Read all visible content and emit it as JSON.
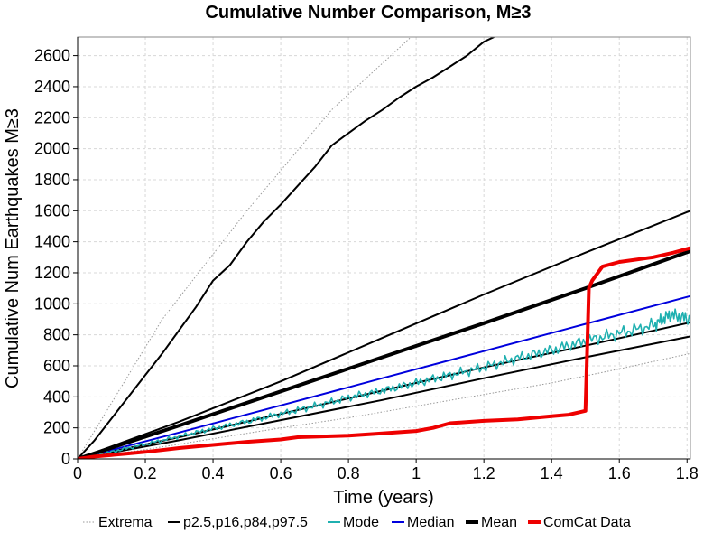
{
  "chart_data": {
    "type": "line",
    "title": "Cumulative Number Comparison, M≥3",
    "xlabel": "Time (years)",
    "ylabel": "Cumulative Num Earthquakes M≥3",
    "xlim": [
      0,
      1.81
    ],
    "ylim": [
      0,
      2720
    ],
    "xticks": [
      0,
      0.2,
      0.4,
      0.6,
      0.8,
      1,
      1.2,
      1.4,
      1.6,
      1.8
    ],
    "xtick_labels": [
      "0",
      "0.2",
      "0.4",
      "0.6",
      "0.8",
      "1",
      "1.2",
      "1.4",
      "1.6",
      "1.8"
    ],
    "yticks": [
      0,
      200,
      400,
      600,
      800,
      1000,
      1200,
      1400,
      1600,
      1800,
      2000,
      2200,
      2400,
      2600
    ],
    "ytick_labels": [
      "0",
      "200",
      "400",
      "600",
      "800",
      "1000",
      "1200",
      "1400",
      "1600",
      "1800",
      "2000",
      "2200",
      "2400",
      "2600"
    ],
    "grid": true,
    "legend_position": "bottom",
    "legend": [
      {
        "label": "Extrema",
        "color": "#999999",
        "style": "dotted"
      },
      {
        "label": "p2.5,p16,p84,p97.5",
        "color": "#000000",
        "style": "solid"
      },
      {
        "label": "Mode",
        "color": "#1fb0b0",
        "style": "solid"
      },
      {
        "label": "Median",
        "color": "#0000dd",
        "style": "solid"
      },
      {
        "label": "Mean",
        "color": "#000000",
        "style": "thick"
      },
      {
        "label": "ComCat Data",
        "color": "#ee0000",
        "style": "thick"
      }
    ],
    "series": [
      {
        "name": "Extrema",
        "color": "#999999",
        "style": "dotted",
        "x": [
          0,
          0.2,
          0.4,
          0.6,
          0.8,
          1.0,
          1.2,
          1.4,
          1.6,
          1.81
        ],
        "y": [
          0,
          60,
          130,
          200,
          265,
          340,
          415,
          490,
          580,
          680
        ]
      },
      {
        "name": "Extrema",
        "color": "#999999",
        "style": "dotted",
        "x": [
          0,
          0.25,
          0.5,
          0.75,
          1.0,
          1.2
        ],
        "y": [
          0,
          900,
          1600,
          2250,
          2750,
          3050
        ]
      },
      {
        "name": "p2.5,p16,p84,p97.5",
        "color": "#000000",
        "style": "thin",
        "x": [
          0,
          0.05,
          0.1,
          0.15,
          0.2,
          0.25,
          0.3,
          0.35,
          0.4,
          0.45,
          0.5,
          0.55,
          0.6,
          0.65,
          0.7,
          0.75,
          0.8,
          0.85,
          0.9,
          0.95,
          1.0,
          1.05,
          1.1,
          1.15,
          1.2,
          1.23
        ],
        "y": [
          0,
          120,
          260,
          400,
          540,
          680,
          830,
          980,
          1150,
          1250,
          1400,
          1530,
          1640,
          1760,
          1880,
          2020,
          2100,
          2180,
          2250,
          2330,
          2400,
          2460,
          2530,
          2600,
          2690,
          2720
        ]
      },
      {
        "name": "p2.5,p16,p84,p97.5",
        "color": "#000000",
        "style": "thin",
        "x": [
          0,
          0.3,
          0.6,
          0.9,
          1.2,
          1.5,
          1.81
        ],
        "y": [
          0,
          240,
          500,
          780,
          1060,
          1330,
          1600
        ]
      },
      {
        "name": "p2.5,p16,p84,p97.5",
        "color": "#000000",
        "style": "thin",
        "x": [
          0,
          0.3,
          0.6,
          0.9,
          1.2,
          1.5,
          1.81
        ],
        "y": [
          0,
          140,
          290,
          440,
          590,
          730,
          880
        ]
      },
      {
        "name": "p2.5,p16,p84,p97.5",
        "color": "#000000",
        "style": "thin",
        "x": [
          0,
          0.3,
          0.6,
          0.9,
          1.2,
          1.5,
          1.81
        ],
        "y": [
          0,
          120,
          250,
          380,
          520,
          655,
          790
        ]
      },
      {
        "name": "Median",
        "color": "#0000dd",
        "style": "thin",
        "x": [
          0,
          0.3,
          0.6,
          0.9,
          1.2,
          1.5,
          1.81
        ],
        "y": [
          0,
          170,
          345,
          520,
          695,
          870,
          1050
        ]
      },
      {
        "name": "Mode",
        "color": "#1fb0b0",
        "style": "noisy",
        "x": [
          0,
          0.1,
          0.2,
          0.3,
          0.4,
          0.5,
          0.6,
          0.7,
          0.8,
          0.9,
          1.0,
          1.1,
          1.2,
          1.3,
          1.4,
          1.5,
          1.6,
          1.7,
          1.75,
          1.81
        ],
        "y": [
          0,
          45,
          95,
          145,
          195,
          240,
          290,
          340,
          395,
          440,
          490,
          540,
          590,
          650,
          700,
          760,
          810,
          860,
          930,
          900
        ]
      },
      {
        "name": "Mean",
        "color": "#000000",
        "style": "thick",
        "x": [
          0,
          0.3,
          0.6,
          0.9,
          1.2,
          1.5,
          1.81
        ],
        "y": [
          0,
          215,
          435,
          655,
          875,
          1100,
          1340
        ]
      },
      {
        "name": "ComCat Data",
        "color": "#ee0000",
        "style": "thick",
        "x": [
          0,
          0.05,
          0.1,
          0.15,
          0.2,
          0.3,
          0.4,
          0.5,
          0.6,
          0.65,
          0.8,
          0.9,
          1.0,
          1.05,
          1.1,
          1.2,
          1.3,
          1.4,
          1.45,
          1.5,
          1.505,
          1.51,
          1.52,
          1.55,
          1.6,
          1.7,
          1.76,
          1.81
        ],
        "y": [
          0,
          15,
          25,
          35,
          45,
          70,
          90,
          110,
          125,
          140,
          150,
          165,
          180,
          200,
          230,
          245,
          255,
          275,
          285,
          310,
          700,
          1100,
          1150,
          1240,
          1270,
          1300,
          1330,
          1360
        ]
      }
    ]
  }
}
